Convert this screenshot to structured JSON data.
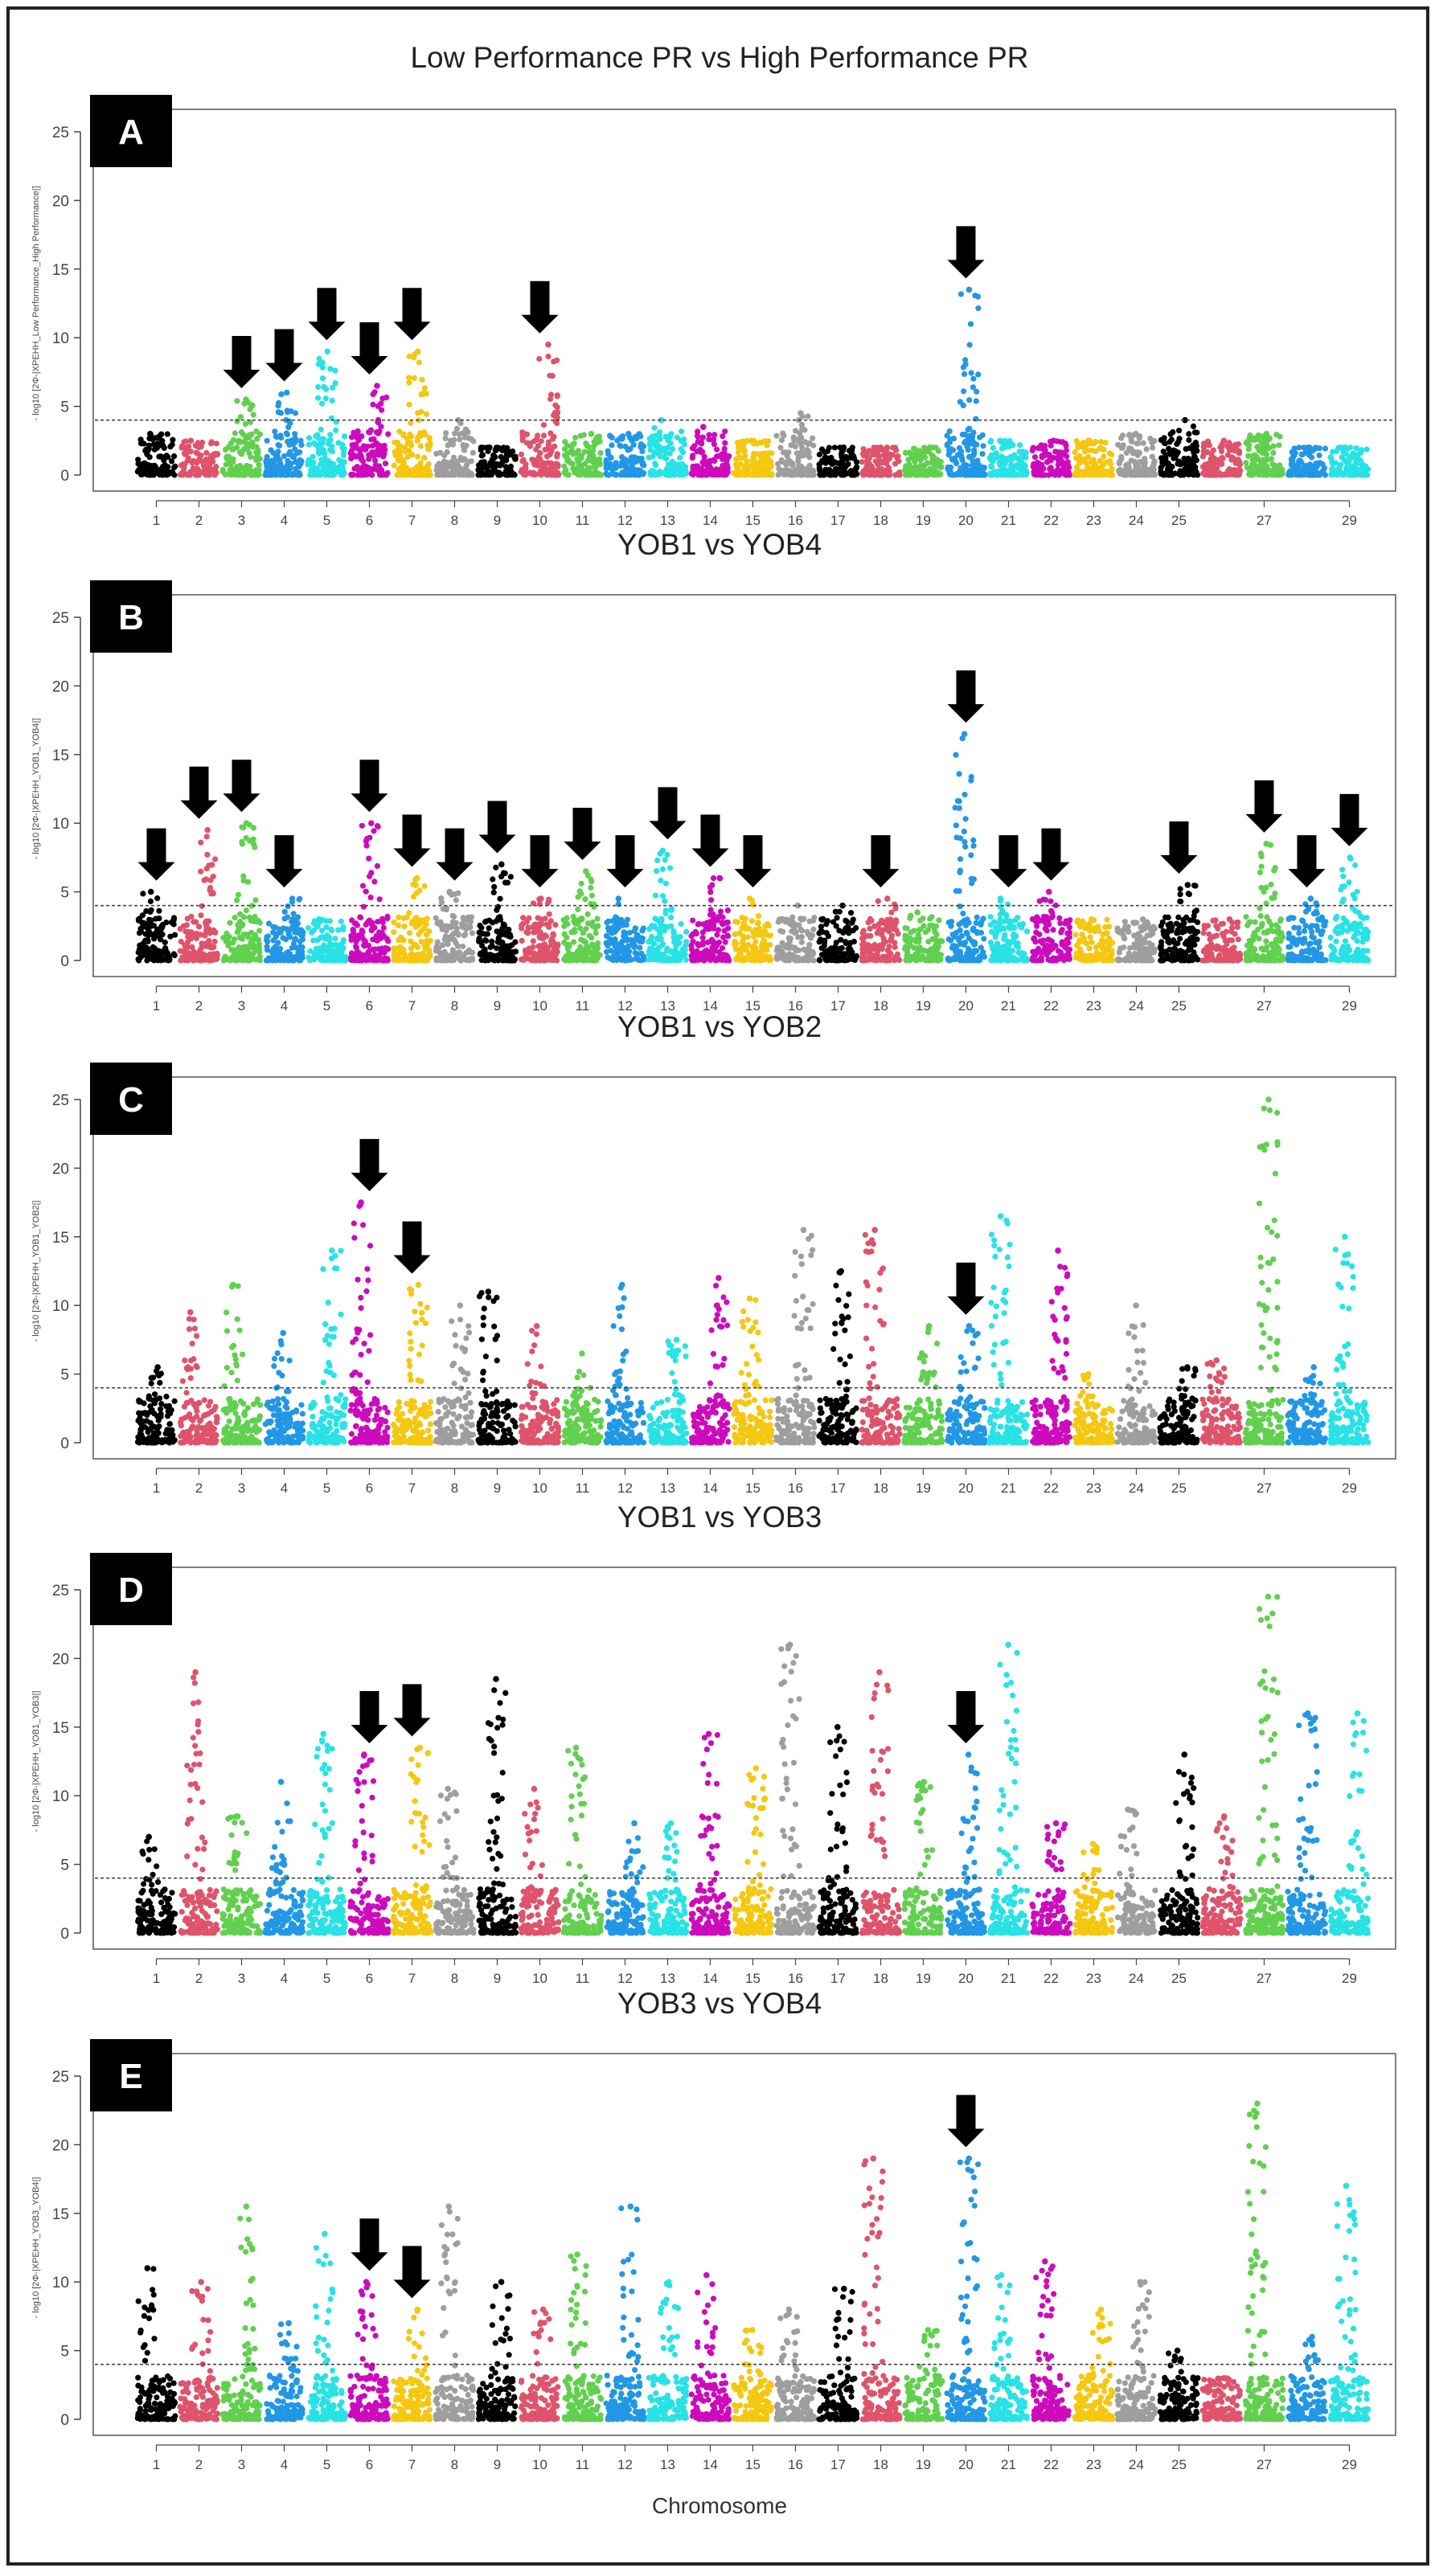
{
  "xlabel": "Chromosome",
  "y_tick_labels": [
    "0",
    "5",
    "10",
    "15",
    "20",
    "25"
  ],
  "chromosome_labels": [
    "1",
    "2",
    "3",
    "4",
    "5",
    "6",
    "7",
    "8",
    "9",
    "10",
    "11",
    "12",
    "13",
    "14",
    "15",
    "16",
    "17",
    "18",
    "19",
    "20",
    "21",
    "22",
    "23",
    "24",
    "25",
    "27",
    "29"
  ],
  "colors": {
    "palette": [
      "#000000",
      "#df536b",
      "#61d04f",
      "#2297e6",
      "#28e2e5",
      "#cd0bbc",
      "#f5c710",
      "#9e9e9e"
    ],
    "threshold": "#444444",
    "arrow": "#000000",
    "panel_letter_bg": "#000000",
    "panel_letter_text": "#ffffff"
  },
  "panels": [
    {
      "letter": "A",
      "title": "Low Performance PR vs High Performance PR",
      "ylabel": "- log10 [2Φ-|XPEHH_Low Performance_High Performance|]",
      "arrow_chromosomes": [
        "3",
        "4",
        "5",
        "6",
        "7",
        "10",
        "20"
      ]
    },
    {
      "letter": "B",
      "title": "YOB1 vs YOB4",
      "ylabel": "- log10 [2Φ-|XPEHH_YOB1_YOB4|]",
      "arrow_chromosomes": [
        "1",
        "2",
        "3",
        "4",
        "6",
        "7",
        "8",
        "9",
        "10",
        "11",
        "12",
        "13",
        "14",
        "15",
        "18",
        "20",
        "21",
        "22",
        "25",
        "27",
        "28",
        "29"
      ]
    },
    {
      "letter": "C",
      "title": "YOB1 vs YOB2",
      "ylabel": "- log10 [2Φ-|XPEHH_YOB1_YOB2|]",
      "arrow_chromosomes": [
        "6",
        "7",
        "20"
      ]
    },
    {
      "letter": "D",
      "title": "YOB1 vs YOB3",
      "ylabel": "- log10 [2Φ-|XPEHH_YOB1_YOB3|]",
      "arrow_chromosomes": [
        "6",
        "7",
        "20"
      ]
    },
    {
      "letter": "E",
      "title": "YOB3 vs YOB4",
      "ylabel": "- log10 [2Φ-|XPEHH_YOB3_YOB4|]",
      "arrow_chromosomes": [
        "6",
        "7",
        "20"
      ]
    }
  ],
  "chart_data": [
    {
      "type": "scatter",
      "panel": "A",
      "title": "Low Performance PR vs High Performance PR",
      "ylim": [
        0,
        25
      ],
      "threshold": 4,
      "chromosomes": [
        "1",
        "2",
        "3",
        "4",
        "5",
        "6",
        "7",
        "8",
        "9",
        "10",
        "11",
        "12",
        "13",
        "14",
        "15",
        "16",
        "17",
        "18",
        "19",
        "20",
        "21",
        "22",
        "23",
        "24",
        "25",
        "26",
        "27",
        "28",
        "29"
      ],
      "peaks": {
        "1": 3.0,
        "2": 2.5,
        "3": 5.5,
        "4": 6.0,
        "5": 9.0,
        "6": 6.5,
        "7": 9.0,
        "8": 4.0,
        "9": 2.0,
        "10": 9.5,
        "11": 3.0,
        "12": 3.0,
        "13": 4.0,
        "14": 3.5,
        "15": 2.5,
        "16": 4.5,
        "17": 2.0,
        "18": 2.0,
        "19": 2.0,
        "20": 13.5,
        "21": 2.5,
        "22": 2.5,
        "23": 2.5,
        "24": 3.0,
        "25": 4.0,
        "26": 2.5,
        "27": 3.0,
        "28": 2.0,
        "29": 2.0
      },
      "arrows": [
        "3",
        "4",
        "5",
        "6",
        "7",
        "10",
        "20"
      ]
    },
    {
      "type": "scatter",
      "panel": "B",
      "title": "YOB1 vs YOB4",
      "ylim": [
        0,
        25
      ],
      "threshold": 4,
      "chromosomes": [
        "1",
        "2",
        "3",
        "4",
        "5",
        "6",
        "7",
        "8",
        "9",
        "10",
        "11",
        "12",
        "13",
        "14",
        "15",
        "16",
        "17",
        "18",
        "19",
        "20",
        "21",
        "22",
        "23",
        "24",
        "25",
        "26",
        "27",
        "28",
        "29"
      ],
      "peaks": {
        "1": 5.0,
        "2": 9.5,
        "3": 10.0,
        "4": 4.5,
        "5": 3.0,
        "6": 10.0,
        "7": 6.0,
        "8": 5.0,
        "9": 7.0,
        "10": 4.5,
        "11": 6.5,
        "12": 4.5,
        "13": 8.0,
        "14": 6.0,
        "15": 4.5,
        "16": 4.0,
        "17": 4.0,
        "18": 4.5,
        "19": 3.5,
        "20": 16.5,
        "21": 4.5,
        "22": 5.0,
        "23": 3.0,
        "24": 3.0,
        "25": 5.5,
        "26": 3.0,
        "27": 8.5,
        "28": 4.5,
        "29": 7.5
      },
      "arrows": [
        "1",
        "2",
        "3",
        "4",
        "6",
        "7",
        "8",
        "9",
        "10",
        "11",
        "12",
        "13",
        "14",
        "15",
        "18",
        "20",
        "21",
        "22",
        "25",
        "27",
        "28",
        "29"
      ]
    },
    {
      "type": "scatter",
      "panel": "C",
      "title": "YOB1 vs YOB2",
      "ylim": [
        0,
        25
      ],
      "threshold": 4,
      "chromosomes": [
        "1",
        "2",
        "3",
        "4",
        "5",
        "6",
        "7",
        "8",
        "9",
        "10",
        "11",
        "12",
        "13",
        "14",
        "15",
        "16",
        "17",
        "18",
        "19",
        "20",
        "21",
        "22",
        "23",
        "24",
        "25",
        "26",
        "27",
        "28",
        "29"
      ],
      "peaks": {
        "1": 5.5,
        "2": 9.5,
        "3": 11.5,
        "4": 8.0,
        "5": 14.0,
        "6": 17.5,
        "7": 11.5,
        "8": 10.0,
        "9": 11.0,
        "10": 8.5,
        "11": 6.5,
        "12": 11.5,
        "13": 7.5,
        "14": 12.0,
        "15": 10.5,
        "16": 15.5,
        "17": 12.5,
        "18": 15.5,
        "19": 8.5,
        "20": 8.5,
        "21": 16.5,
        "22": 14.0,
        "23": 5.0,
        "24": 10.0,
        "25": 5.5,
        "26": 6.0,
        "27": 25.0,
        "28": 5.5,
        "29": 15.0
      },
      "arrows": [
        "6",
        "7",
        "20"
      ]
    },
    {
      "type": "scatter",
      "panel": "D",
      "title": "YOB1 vs YOB3",
      "ylim": [
        0,
        25
      ],
      "threshold": 4,
      "chromosomes": [
        "1",
        "2",
        "3",
        "4",
        "5",
        "6",
        "7",
        "8",
        "9",
        "10",
        "11",
        "12",
        "13",
        "14",
        "15",
        "16",
        "17",
        "18",
        "19",
        "20",
        "21",
        "22",
        "23",
        "24",
        "25",
        "26",
        "27",
        "28",
        "29"
      ],
      "peaks": {
        "1": 7.0,
        "2": 19.0,
        "3": 8.5,
        "4": 11.0,
        "5": 14.5,
        "6": 13.0,
        "7": 13.5,
        "8": 10.5,
        "9": 18.5,
        "10": 10.5,
        "11": 13.5,
        "12": 8.0,
        "13": 8.0,
        "14": 14.5,
        "15": 12.0,
        "16": 21.0,
        "17": 15.0,
        "18": 19.0,
        "19": 11.0,
        "20": 13.0,
        "21": 21.0,
        "22": 8.0,
        "23": 6.5,
        "24": 9.0,
        "25": 13.0,
        "26": 8.5,
        "27": 24.5,
        "28": 16.0,
        "29": 16.0
      },
      "arrows": [
        "6",
        "7",
        "20"
      ]
    },
    {
      "type": "scatter",
      "panel": "E",
      "title": "YOB3 vs YOB4",
      "ylim": [
        0,
        25
      ],
      "threshold": 4,
      "chromosomes": [
        "1",
        "2",
        "3",
        "4",
        "5",
        "6",
        "7",
        "8",
        "9",
        "10",
        "11",
        "12",
        "13",
        "14",
        "15",
        "16",
        "17",
        "18",
        "19",
        "20",
        "21",
        "22",
        "23",
        "24",
        "25",
        "26",
        "27",
        "28",
        "29"
      ],
      "peaks": {
        "1": 11.0,
        "2": 10.0,
        "3": 15.5,
        "4": 7.0,
        "5": 13.5,
        "6": 10.0,
        "7": 8.0,
        "8": 15.5,
        "9": 10.0,
        "10": 8.0,
        "11": 12.0,
        "12": 15.5,
        "13": 10.0,
        "14": 10.5,
        "15": 6.5,
        "16": 8.0,
        "17": 9.5,
        "18": 19.0,
        "19": 6.5,
        "20": 19.0,
        "21": 10.5,
        "22": 11.5,
        "23": 8.0,
        "24": 10.0,
        "25": 5.0,
        "26": 3.0,
        "27": 23.0,
        "28": 6.0,
        "29": 17.0
      },
      "arrows": [
        "6",
        "7",
        "20"
      ]
    }
  ]
}
